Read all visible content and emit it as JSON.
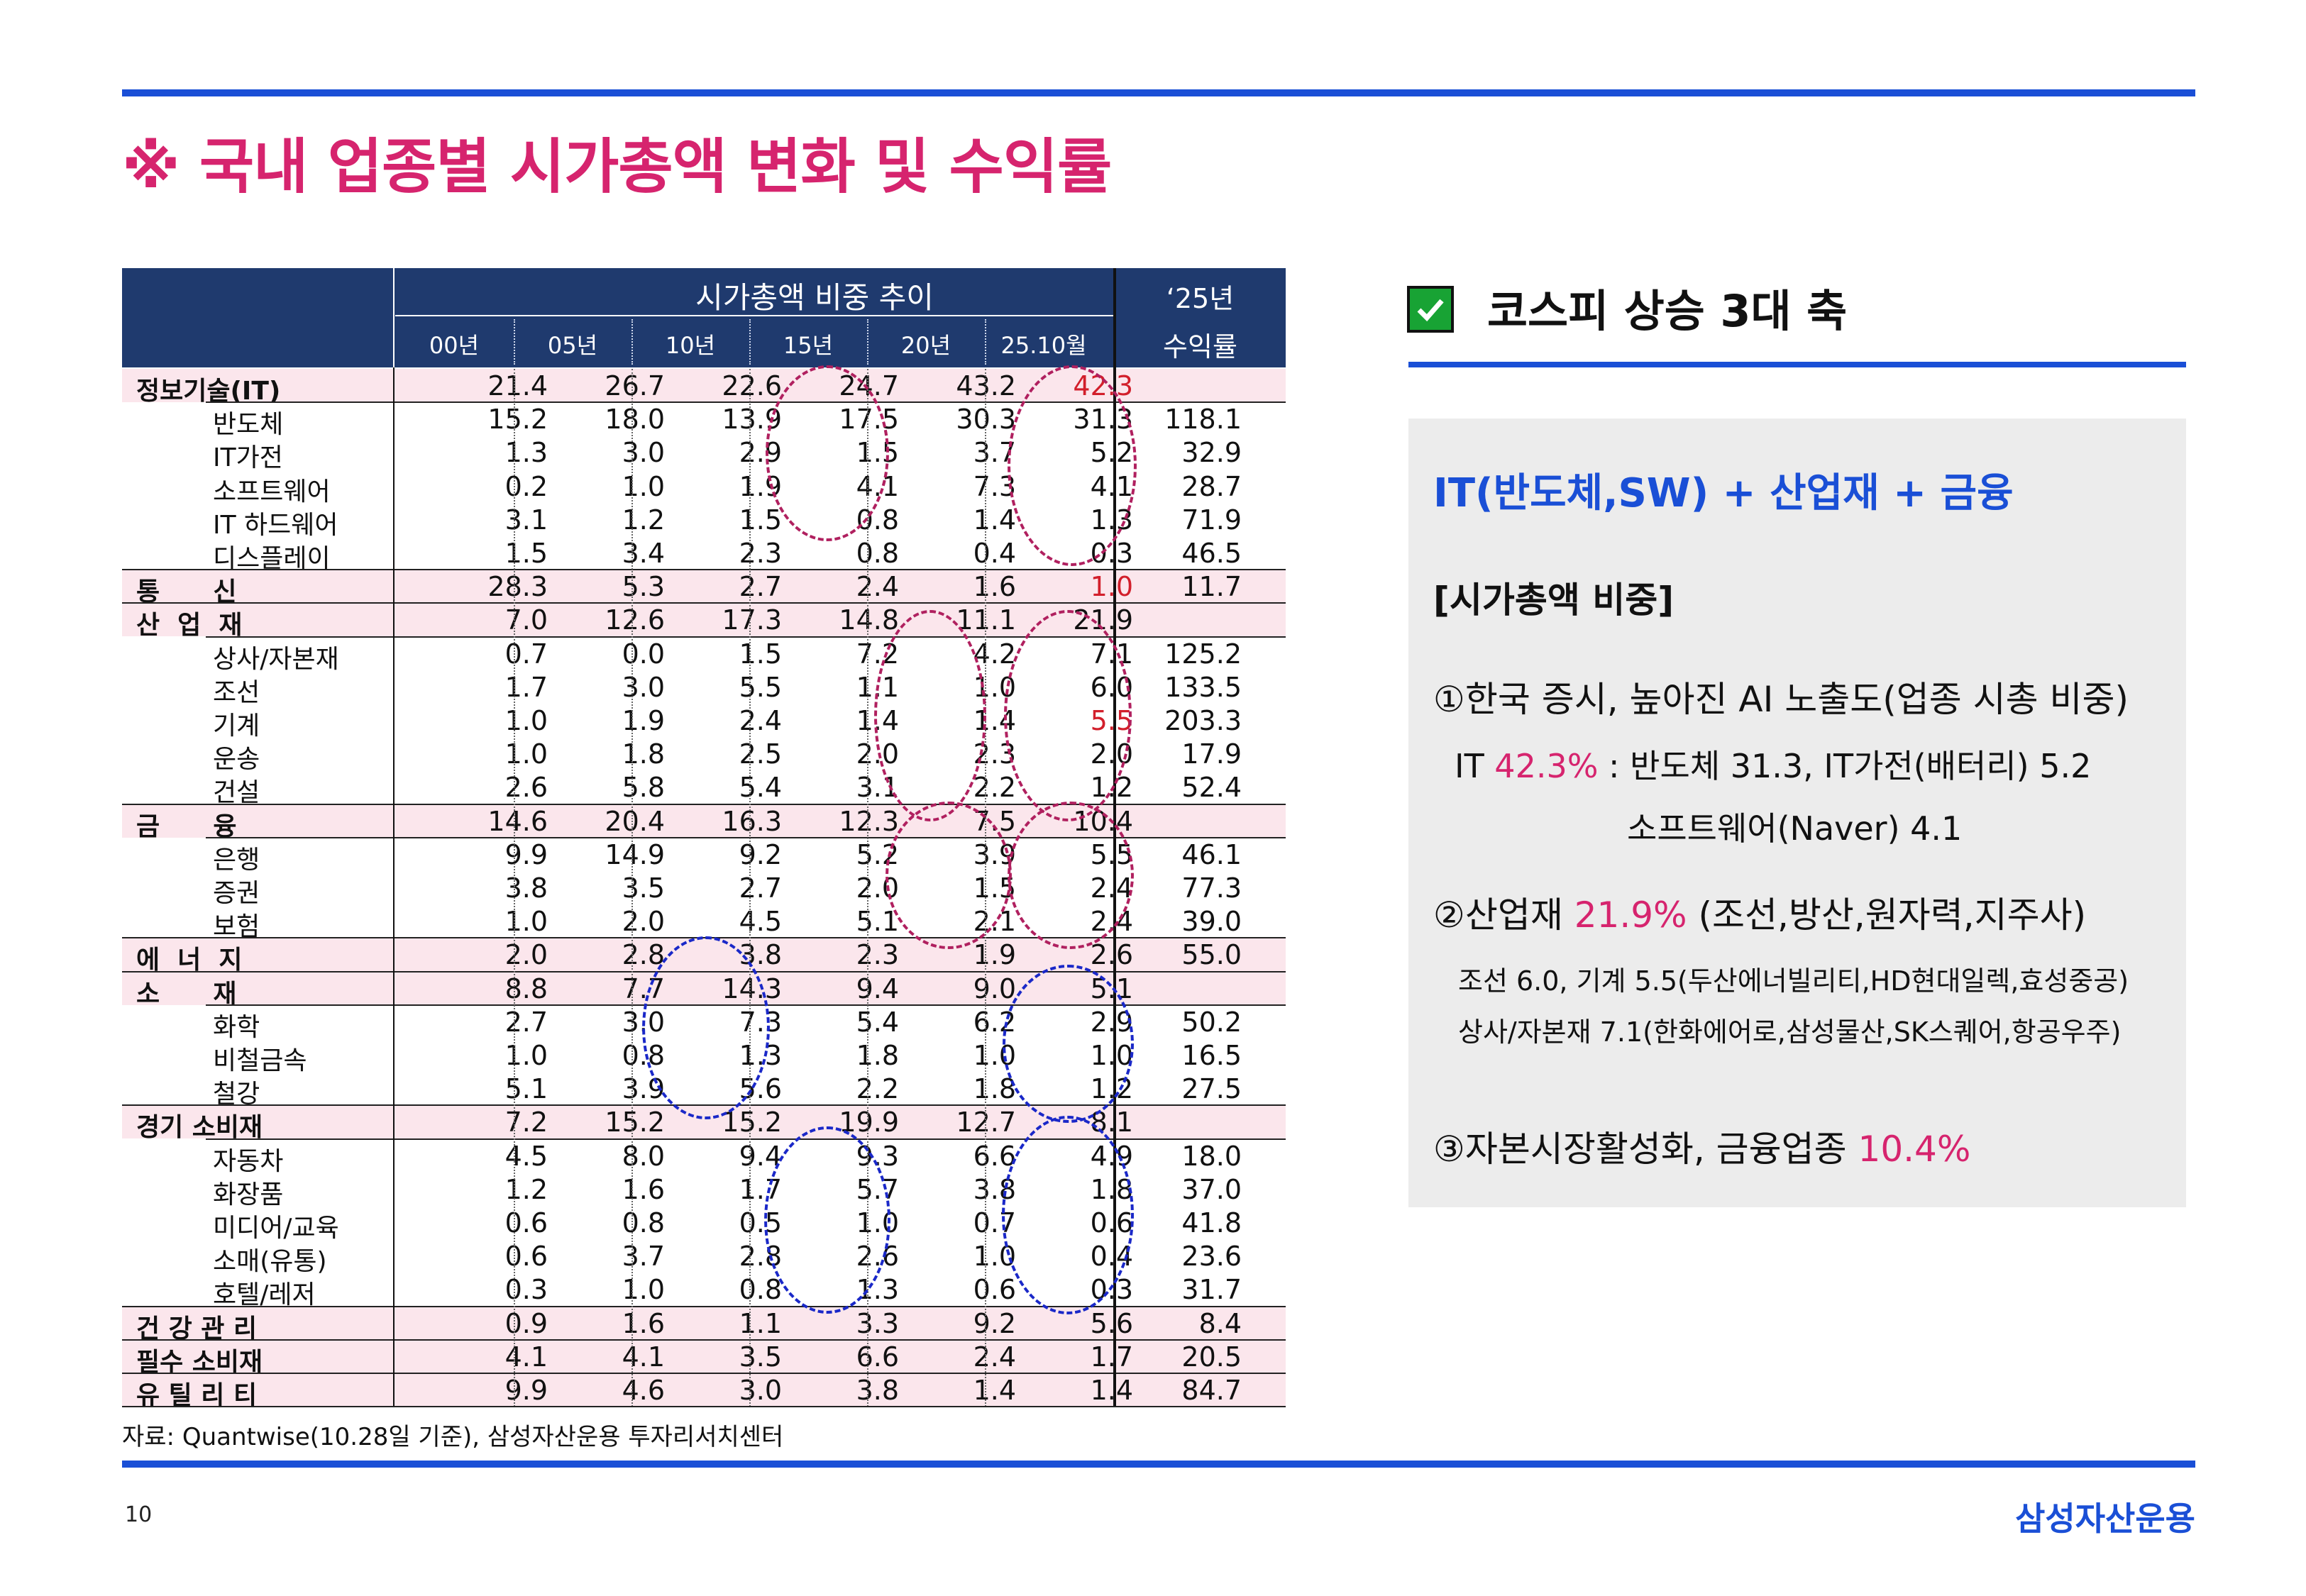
{
  "title": "※ 국내 업종별 시가총액 변화 및 수익률",
  "table": {
    "header_group": "시가총액 비중 추이",
    "header_25": "‘25년",
    "header_return": "수익률",
    "years": [
      "00년",
      "05년",
      "10년",
      "15년",
      "20년",
      "25.10월"
    ],
    "rows": [
      {
        "label": "정보기술(IT)",
        "type": "cat",
        "vals": [
          "21.4",
          "26.7",
          "22.6",
          "24.7",
          "43.2",
          "42.3"
        ],
        "ret": ""
      },
      {
        "label": "반도체",
        "type": "sub",
        "vals": [
          "15.2",
          "18.0",
          "13.9",
          "17.5",
          "30.3",
          "31.3"
        ],
        "ret": "118.1"
      },
      {
        "label": "IT가전",
        "type": "sub",
        "vals": [
          "1.3",
          "3.0",
          "2.9",
          "1.5",
          "3.7",
          "5.2"
        ],
        "ret": "32.9"
      },
      {
        "label": "소프트웨어",
        "type": "sub",
        "vals": [
          "0.2",
          "1.0",
          "1.9",
          "4.1",
          "7.3",
          "4.1"
        ],
        "ret": "28.7"
      },
      {
        "label": "IT 하드웨어",
        "type": "sub",
        "vals": [
          "3.1",
          "1.2",
          "1.5",
          "0.8",
          "1.4",
          "1.3"
        ],
        "ret": "71.9"
      },
      {
        "label": "디스플레이",
        "type": "sub",
        "vals": [
          "1.5",
          "3.4",
          "2.3",
          "0.8",
          "0.4",
          "0.3"
        ],
        "ret": "46.5"
      },
      {
        "label": "통      신",
        "type": "cat",
        "vals": [
          "28.3",
          "5.3",
          "2.7",
          "2.4",
          "1.6",
          "1.0"
        ],
        "ret": "11.7"
      },
      {
        "label": "산  업  재",
        "type": "cat",
        "vals": [
          "7.0",
          "12.6",
          "17.3",
          "14.8",
          "11.1",
          "21.9"
        ],
        "ret": ""
      },
      {
        "label": "상사/자본재",
        "type": "sub",
        "vals": [
          "0.7",
          "0.0",
          "1.5",
          "7.2",
          "4.2",
          "7.1"
        ],
        "ret": "125.2"
      },
      {
        "label": "조선",
        "type": "sub",
        "vals": [
          "1.7",
          "3.0",
          "5.5",
          "1.1",
          "1.0",
          "6.0"
        ],
        "ret": "133.5"
      },
      {
        "label": "기계",
        "type": "sub",
        "vals": [
          "1.0",
          "1.9",
          "2.4",
          "1.4",
          "1.4",
          "5.5"
        ],
        "ret": "203.3"
      },
      {
        "label": "운송",
        "type": "sub",
        "vals": [
          "1.0",
          "1.8",
          "2.5",
          "2.0",
          "2.3",
          "2.0"
        ],
        "ret": "17.9"
      },
      {
        "label": "건설",
        "type": "sub",
        "vals": [
          "2.6",
          "5.8",
          "5.4",
          "3.1",
          "2.2",
          "1.2"
        ],
        "ret": "52.4"
      },
      {
        "label": "금      융",
        "type": "cat",
        "vals": [
          "14.6",
          "20.4",
          "16.3",
          "12.3",
          "7.5",
          "10.4"
        ],
        "ret": ""
      },
      {
        "label": "은행",
        "type": "sub",
        "vals": [
          "9.9",
          "14.9",
          "9.2",
          "5.2",
          "3.9",
          "5.5"
        ],
        "ret": "46.1"
      },
      {
        "label": "증권",
        "type": "sub",
        "vals": [
          "3.8",
          "3.5",
          "2.7",
          "2.0",
          "1.5",
          "2.4"
        ],
        "ret": "77.3"
      },
      {
        "label": "보험",
        "type": "sub",
        "vals": [
          "1.0",
          "2.0",
          "4.5",
          "5.1",
          "2.1",
          "2.4"
        ],
        "ret": "39.0"
      },
      {
        "label": "에  너  지",
        "type": "cat",
        "vals": [
          "2.0",
          "2.8",
          "3.8",
          "2.3",
          "1.9",
          "2.6"
        ],
        "ret": "55.0"
      },
      {
        "label": "소      재",
        "type": "cat",
        "vals": [
          "8.8",
          "7.7",
          "14.3",
          "9.4",
          "9.0",
          "5.1"
        ],
        "ret": ""
      },
      {
        "label": "화학",
        "type": "sub",
        "vals": [
          "2.7",
          "3.0",
          "7.3",
          "5.4",
          "6.2",
          "2.9"
        ],
        "ret": "50.2"
      },
      {
        "label": "비철금속",
        "type": "sub",
        "vals": [
          "1.0",
          "0.8",
          "1.3",
          "1.8",
          "1.0",
          "1.0"
        ],
        "ret": "16.5"
      },
      {
        "label": "철강",
        "type": "sub",
        "vals": [
          "5.1",
          "3.9",
          "5.6",
          "2.2",
          "1.8",
          "1.2"
        ],
        "ret": "27.5"
      },
      {
        "label": "경기 소비재",
        "type": "cat",
        "vals": [
          "7.2",
          "15.2",
          "15.2",
          "19.9",
          "12.7",
          "8.1"
        ],
        "ret": ""
      },
      {
        "label": "자동차",
        "type": "sub",
        "vals": [
          "4.5",
          "8.0",
          "9.4",
          "9.3",
          "6.6",
          "4.9"
        ],
        "ret": "18.0"
      },
      {
        "label": "화장품",
        "type": "sub",
        "vals": [
          "1.2",
          "1.6",
          "1.7",
          "5.7",
          "3.8",
          "1.8"
        ],
        "ret": "37.0"
      },
      {
        "label": "미디어/교육",
        "type": "sub",
        "vals": [
          "0.6",
          "0.8",
          "0.5",
          "1.0",
          "0.7",
          "0.6"
        ],
        "ret": "41.8"
      },
      {
        "label": "소매(유통)",
        "type": "sub",
        "vals": [
          "0.6",
          "3.7",
          "2.8",
          "2.6",
          "1.0",
          "0.4"
        ],
        "ret": "23.6"
      },
      {
        "label": "호텔/레저",
        "type": "sub",
        "vals": [
          "0.3",
          "1.0",
          "0.8",
          "1.3",
          "0.6",
          "0.3"
        ],
        "ret": "31.7"
      },
      {
        "label": "건 강 관 리",
        "type": "cat2",
        "vals": [
          "0.9",
          "1.6",
          "1.1",
          "3.3",
          "9.2",
          "5.6"
        ],
        "ret": "8.4"
      },
      {
        "label": "필수 소비재",
        "type": "cat2",
        "vals": [
          "4.1",
          "4.1",
          "3.5",
          "6.6",
          "2.4",
          "1.7"
        ],
        "ret": "20.5"
      },
      {
        "label": "유 틸 리 티",
        "type": "cat2",
        "vals": [
          "9.9",
          "4.6",
          "3.0",
          "3.8",
          "1.4",
          "1.4"
        ],
        "ret": "84.7"
      }
    ],
    "highlight_color": "#d21f2b"
  },
  "source": "자료: Quantwise(10.28일 기준), 삼성자산운용 투자리서치센터",
  "page_number": "10",
  "brand": "삼성자산운용",
  "right": {
    "heading": "코스피 상승 3대 축",
    "checkbox_icon": "check-icon",
    "axis_line": "IT(반도체,SW) + 산업재 + 금융",
    "subhead": "[시가총액 비중]",
    "p1": "①한국 증시, 높아진 AI 노출도(업종 시총 비중)",
    "p1a_pre": "IT ",
    "p1a_hl": "42.3%",
    "p1a_post": " : 반도체 31.3, IT가전(배터리) 5.2",
    "p1b": "소프트웨어(Naver) 4.1",
    "p2_pre": "②산업재 ",
    "p2_hl": "21.9%",
    "p2_post": " (조선,방산,원자력,지주사)",
    "p2a": "조선 6.0, 기계 5.5(두산에너빌리티,HD현대일렉,효성중공)",
    "p2b": "상사/자본재 7.1(한화에어로,삼성물산,SK스퀘어,항공우주)",
    "p3_pre": "③자본시장활성화, 금융업종  ",
    "p3_hl": "10.4%"
  },
  "colors": {
    "accent_blue": "#1a4fd6",
    "accent_magenta": "#d6246e",
    "header_navy": "#1f3a6e",
    "row_pink": "#fbe6ec"
  }
}
